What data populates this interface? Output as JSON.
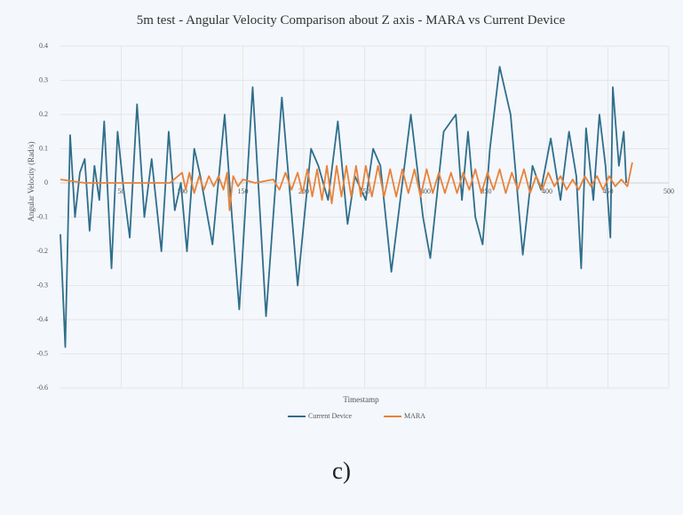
{
  "chart_data": {
    "type": "line",
    "title": "5m test - Angular Velocity Comparison about Z axis - MARA vs Current Device",
    "xlabel": "Timestamp",
    "ylabel": "Angular Velocity (Rad/s)",
    "xlim": [
      0,
      500
    ],
    "xticks": [
      50,
      100,
      150,
      200,
      250,
      300,
      350,
      400,
      450,
      500
    ],
    "ylim": [
      -0.6,
      0.4
    ],
    "yticks": [
      0.4,
      0.3,
      0.2,
      0.1,
      0,
      -0.1,
      -0.2,
      -0.3,
      -0.4,
      -0.5,
      -0.6
    ],
    "grid": true,
    "legend": "bottom",
    "series": [
      {
        "name": "Current Device",
        "color": "#2f6e8c",
        "x": [
          0,
          4,
          8,
          12,
          16,
          20,
          24,
          28,
          32,
          36,
          42,
          47,
          52,
          57,
          63,
          69,
          75,
          83,
          89,
          94,
          99,
          104,
          110,
          115,
          120,
          125,
          135,
          141,
          147,
          158,
          169,
          182,
          195,
          206,
          212,
          220,
          228,
          236,
          242,
          251,
          257,
          263,
          272,
          288,
          298,
          304,
          315,
          325,
          330,
          335,
          341,
          347,
          353,
          361,
          370,
          380,
          388,
          395,
          403,
          411,
          418,
          424,
          428,
          432,
          438,
          443,
          448,
          452,
          454,
          459,
          463,
          465
        ],
        "values": [
          -0.15,
          -0.48,
          0.14,
          -0.1,
          0.03,
          0.07,
          -0.14,
          0.05,
          -0.05,
          0.18,
          -0.25,
          0.15,
          -0.02,
          -0.16,
          0.23,
          -0.1,
          0.07,
          -0.2,
          0.15,
          -0.08,
          0.0,
          -0.2,
          0.1,
          0.02,
          -0.08,
          -0.18,
          0.2,
          -0.1,
          -0.37,
          0.28,
          -0.39,
          0.25,
          -0.3,
          0.1,
          0.05,
          -0.05,
          0.18,
          -0.12,
          0.02,
          -0.05,
          0.1,
          0.05,
          -0.26,
          0.2,
          -0.1,
          -0.22,
          0.15,
          0.2,
          -0.05,
          0.15,
          -0.1,
          -0.18,
          0.1,
          0.34,
          0.2,
          -0.21,
          0.05,
          -0.02,
          0.13,
          -0.05,
          0.15,
          0.02,
          -0.25,
          0.16,
          -0.05,
          0.2,
          0.05,
          -0.16,
          0.28,
          0.05,
          0.15,
          0.0
        ]
      },
      {
        "name": "MARA",
        "color": "#e8823a",
        "x": [
          0,
          20,
          50,
          90,
          100,
          103,
          106,
          110,
          114,
          118,
          122,
          126,
          130,
          134,
          137,
          139,
          142,
          146,
          150,
          160,
          175,
          180,
          185,
          190,
          195,
          199,
          203,
          207,
          211,
          215,
          219,
          223,
          227,
          231,
          235,
          239,
          243,
          247,
          251,
          256,
          261,
          266,
          271,
          276,
          281,
          286,
          291,
          296,
          301,
          306,
          311,
          316,
          321,
          326,
          331,
          336,
          341,
          346,
          351,
          356,
          361,
          366,
          371,
          376,
          381,
          386,
          391,
          396,
          401,
          406,
          411,
          416,
          421,
          426,
          431,
          436,
          441,
          446,
          451,
          456,
          461,
          466,
          470
        ],
        "values": [
          0.01,
          0,
          0,
          0,
          0.03,
          -0.02,
          0.03,
          -0.03,
          0.02,
          -0.02,
          0.02,
          -0.01,
          0.02,
          -0.02,
          0.03,
          -0.08,
          0.02,
          -0.01,
          0.01,
          0,
          0.01,
          -0.02,
          0.03,
          -0.02,
          0.03,
          -0.03,
          0.04,
          -0.04,
          0.04,
          -0.05,
          0.05,
          -0.06,
          0.05,
          -0.04,
          0.05,
          -0.04,
          0.05,
          -0.04,
          0.05,
          -0.04,
          0.05,
          -0.04,
          0.04,
          -0.04,
          0.04,
          -0.03,
          0.04,
          -0.04,
          0.04,
          -0.03,
          0.03,
          -0.03,
          0.03,
          -0.03,
          0.03,
          -0.02,
          0.04,
          -0.03,
          0.03,
          -0.02,
          0.04,
          -0.03,
          0.03,
          -0.02,
          0.04,
          -0.03,
          0.02,
          -0.02,
          0.03,
          -0.01,
          0.02,
          -0.02,
          0.01,
          -0.02,
          0.02,
          -0.01,
          0.02,
          -0.02,
          0.02,
          -0.01,
          0.01,
          -0.01,
          0.06
        ]
      }
    ]
  }
}
